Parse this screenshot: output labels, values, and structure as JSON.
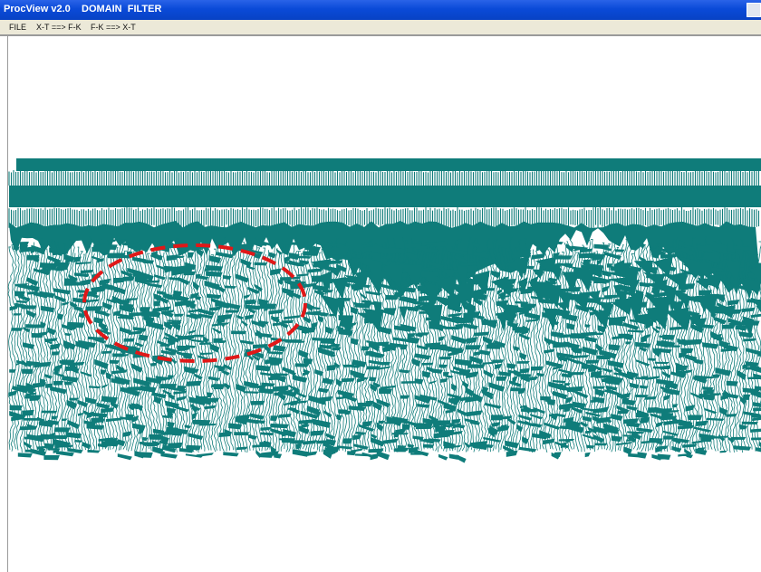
{
  "window": {
    "title": "ProcView v2.0    DOMAIN  FILTER"
  },
  "menu": {
    "items": [
      "FILE",
      "X-T ==> F-K",
      "F-K ==> X-T"
    ]
  }
}
